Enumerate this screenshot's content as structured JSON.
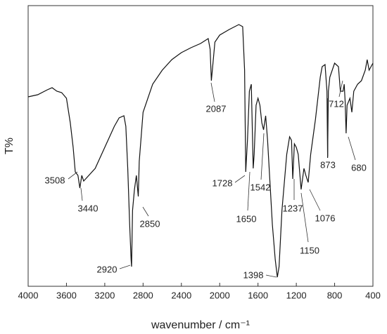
{
  "chart_data": {
    "type": "line",
    "xlabel": "wavenumber / cm⁻¹",
    "ylabel": "T%",
    "xlim": [
      4000,
      400
    ],
    "ylim": [
      0,
      100
    ],
    "xticks": [
      4000,
      3600,
      3200,
      2800,
      2400,
      2000,
      1600,
      1200,
      800,
      400
    ],
    "series": [
      {
        "color": "#111111",
        "x": [
          4000,
          3900,
          3800,
          3750,
          3700,
          3650,
          3600,
          3560,
          3530,
          3508,
          3480,
          3460,
          3440,
          3420,
          3400,
          3300,
          3200,
          3100,
          3050,
          3000,
          2980,
          2960,
          2940,
          2925,
          2920,
          2910,
          2890,
          2870,
          2850,
          2840,
          2800,
          2700,
          2600,
          2500,
          2400,
          2300,
          2200,
          2120,
          2100,
          2087,
          2070,
          2050,
          2000,
          1900,
          1800,
          1760,
          1740,
          1728,
          1710,
          1690,
          1670,
          1650,
          1640,
          1620,
          1600,
          1580,
          1560,
          1542,
          1520,
          1500,
          1450,
          1420,
          1398,
          1380,
          1350,
          1300,
          1270,
          1250,
          1237,
          1220,
          1200,
          1180,
          1150,
          1120,
          1100,
          1076,
          1050,
          1000,
          950,
          930,
          900,
          880,
          873,
          865,
          850,
          800,
          760,
          740,
          712,
          700,
          690,
          680,
          670,
          640,
          620,
          600,
          560,
          520,
          480,
          460,
          440,
          400
        ],
        "values": [
          67.5,
          68.25,
          70,
          70.75,
          69.5,
          69,
          67,
          58.25,
          49.5,
          40.75,
          39.5,
          35,
          39.5,
          37.5,
          38.25,
          42,
          49.5,
          57,
          60,
          60.75,
          57,
          42,
          22,
          9.5,
          7,
          27,
          34.5,
          39.5,
          32,
          44.5,
          62,
          72,
          77,
          80.75,
          83.25,
          85,
          86.5,
          88.25,
          84.5,
          73.25,
          79.5,
          87,
          89.5,
          91.5,
          93.25,
          92.5,
          77,
          40.75,
          52,
          69.5,
          72,
          42,
          47,
          64.5,
          67,
          64.5,
          58.25,
          55.75,
          60.75,
          52,
          22,
          9.5,
          3.25,
          7,
          27,
          47,
          53.25,
          52,
          38.25,
          50.75,
          49.5,
          47,
          34.5,
          42,
          39.5,
          37,
          47,
          59.5,
          74.5,
          78.25,
          79,
          69.5,
          45.75,
          69.5,
          74.5,
          79.5,
          78.25,
          69.5,
          69.5,
          72,
          65.75,
          54.5,
          64.5,
          67,
          62,
          69.5,
          72,
          73.25,
          77,
          80.75,
          77,
          79.5
        ]
      }
    ],
    "annotations": [
      "3508",
      "3440",
      "2920",
      "2850",
      "2087",
      "1728",
      "1650",
      "1542",
      "1398",
      "1237",
      "1150",
      "1076",
      "873",
      "712",
      "680"
    ]
  }
}
